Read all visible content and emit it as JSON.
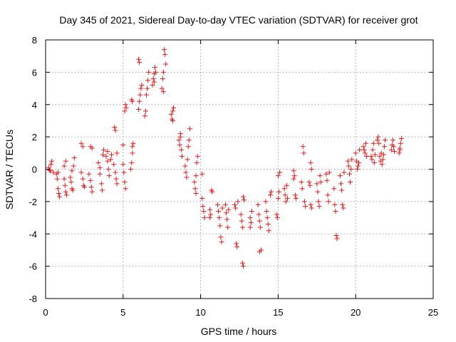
{
  "chart_data": {
    "type": "scatter",
    "title": "Day 345 of 2021, Sidereal Day-to-day VTEC variation (SDTVAR) for receiver grot",
    "xlabel": "GPS time / hours",
    "ylabel": "SDTVAR / TECUs",
    "xlim": [
      0,
      25
    ],
    "ylim": [
      -8,
      8
    ],
    "xticks": [
      0,
      5,
      10,
      15,
      20,
      25
    ],
    "yticks": [
      -8,
      -6,
      -4,
      -2,
      0,
      2,
      4,
      6,
      8
    ],
    "grid": true,
    "marker": "+",
    "color": "#e41a1c",
    "series": [
      {
        "name": "SDTVAR",
        "points": [
          [
            0.2,
            0.1
          ],
          [
            0.3,
            -0.1
          ],
          [
            0.35,
            0.3
          ],
          [
            0.4,
            0.5
          ],
          [
            0.5,
            -0.2
          ],
          [
            0.25,
            -0.05
          ],
          [
            0.7,
            -0.3
          ],
          [
            0.75,
            -0.6
          ],
          [
            0.8,
            -1.2
          ],
          [
            0.85,
            -1.5
          ],
          [
            0.9,
            -1.7
          ],
          [
            0.8,
            -0.2
          ],
          [
            1.2,
            -0.6
          ],
          [
            1.25,
            -1.0
          ],
          [
            1.3,
            -1.4
          ],
          [
            1.35,
            -1.6
          ],
          [
            1.2,
            0.2
          ],
          [
            1.3,
            0.5
          ],
          [
            1.6,
            -0.5
          ],
          [
            1.65,
            -0.8
          ],
          [
            1.7,
            -1.2
          ],
          [
            1.75,
            -1.3
          ],
          [
            1.7,
            -0.1
          ],
          [
            1.8,
            0.2
          ],
          [
            1.85,
            0.7
          ],
          [
            2.3,
            1.6
          ],
          [
            2.4,
            1.4
          ],
          [
            2.3,
            -0.2
          ],
          [
            2.4,
            -0.6
          ],
          [
            2.45,
            -1.0
          ],
          [
            2.5,
            -1.1
          ],
          [
            2.8,
            -0.3
          ],
          [
            2.9,
            -0.7
          ],
          [
            2.95,
            -1.1
          ],
          [
            3.0,
            -1.4
          ],
          [
            2.9,
            1.4
          ],
          [
            3.0,
            1.3
          ],
          [
            3.4,
            0.4
          ],
          [
            3.5,
            0.1
          ],
          [
            3.5,
            -0.3
          ],
          [
            3.6,
            -0.9
          ],
          [
            3.65,
            -1.3
          ],
          [
            3.7,
            0.9
          ],
          [
            3.75,
            1.2
          ],
          [
            3.9,
            0.8
          ],
          [
            4.0,
            0.5
          ],
          [
            4.05,
            0.0
          ],
          [
            4.1,
            -0.4
          ],
          [
            4.0,
            1.1
          ],
          [
            4.2,
            0.6
          ],
          [
            4.25,
            0.9
          ],
          [
            4.4,
            0.3
          ],
          [
            4.5,
            -0.2
          ],
          [
            4.55,
            -0.6
          ],
          [
            4.6,
            -0.9
          ],
          [
            4.45,
            2.6
          ],
          [
            4.5,
            2.4
          ],
          [
            4.6,
            1.0
          ],
          [
            5.0,
            0.3
          ],
          [
            5.05,
            -0.2
          ],
          [
            5.1,
            -0.8
          ],
          [
            5.15,
            -1.2
          ],
          [
            5.0,
            1.5
          ],
          [
            5.1,
            3.6
          ],
          [
            5.15,
            4.0
          ],
          [
            5.2,
            3.8
          ],
          [
            5.5,
            0.0
          ],
          [
            5.55,
            0.4
          ],
          [
            5.6,
            1.0
          ],
          [
            5.6,
            1.4
          ],
          [
            5.65,
            1.6
          ],
          [
            5.55,
            4.3
          ],
          [
            5.6,
            4.2
          ],
          [
            6.0,
            3.7
          ],
          [
            6.05,
            4.2
          ],
          [
            6.1,
            4.6
          ],
          [
            6.15,
            5.0
          ],
          [
            6.2,
            5.2
          ],
          [
            6.0,
            6.8
          ],
          [
            6.05,
            6.6
          ],
          [
            6.4,
            3.3
          ],
          [
            6.45,
            3.6
          ],
          [
            6.5,
            4.6
          ],
          [
            6.55,
            5.0
          ],
          [
            6.6,
            5.5
          ],
          [
            6.65,
            6.0
          ],
          [
            6.9,
            5.2
          ],
          [
            6.95,
            5.6
          ],
          [
            7.0,
            5.9
          ],
          [
            7.05,
            6.3
          ],
          [
            7.1,
            6.0
          ],
          [
            7.0,
            5.4
          ],
          [
            7.5,
            5.0
          ],
          [
            7.55,
            5.6
          ],
          [
            7.6,
            6.0
          ],
          [
            7.65,
            7.4
          ],
          [
            7.7,
            7.1
          ],
          [
            7.75,
            6.5
          ],
          [
            7.6,
            4.8
          ],
          [
            8.1,
            3.4
          ],
          [
            8.15,
            3.1
          ],
          [
            8.2,
            3.6
          ],
          [
            8.25,
            3.8
          ],
          [
            8.2,
            3.0
          ],
          [
            8.6,
            1.8
          ],
          [
            8.65,
            1.5
          ],
          [
            8.7,
            2.0
          ],
          [
            8.75,
            1.2
          ],
          [
            8.8,
            0.8
          ],
          [
            8.7,
            2.2
          ],
          [
            9.0,
            0.2
          ],
          [
            9.05,
            -0.2
          ],
          [
            9.1,
            -0.5
          ],
          [
            9.15,
            0.6
          ],
          [
            9.2,
            1.4
          ],
          [
            9.25,
            1.8
          ],
          [
            9.3,
            2.5
          ],
          [
            9.6,
            -0.8
          ],
          [
            9.65,
            -1.2
          ],
          [
            9.7,
            -1.5
          ],
          [
            9.75,
            0.4
          ],
          [
            9.8,
            0.8
          ],
          [
            9.7,
            -0.4
          ],
          [
            10.1,
            -1.8
          ],
          [
            10.15,
            -2.3
          ],
          [
            10.2,
            -2.6
          ],
          [
            10.25,
            -3.0
          ],
          [
            10.1,
            -0.3
          ],
          [
            10.6,
            -2.5
          ],
          [
            10.65,
            -2.8
          ],
          [
            10.7,
            -1.3
          ],
          [
            10.75,
            -1.4
          ],
          [
            10.6,
            -3.0
          ],
          [
            11.1,
            -2.2
          ],
          [
            11.15,
            -2.6
          ],
          [
            11.2,
            -3.0
          ],
          [
            11.25,
            -3.5
          ],
          [
            11.3,
            -4.2
          ],
          [
            11.35,
            -4.5
          ],
          [
            11.4,
            -2.4
          ],
          [
            11.6,
            -2.2
          ],
          [
            11.65,
            -2.7
          ],
          [
            11.7,
            -3.1
          ],
          [
            11.75,
            -3.6
          ],
          [
            11.8,
            -2.5
          ],
          [
            12.2,
            -2.2
          ],
          [
            12.25,
            -2.4
          ],
          [
            12.3,
            -4.6
          ],
          [
            12.35,
            -4.8
          ],
          [
            12.4,
            -2.0
          ],
          [
            12.6,
            -2.8
          ],
          [
            12.65,
            -3.2
          ],
          [
            12.7,
            -3.6
          ],
          [
            12.75,
            -1.7
          ],
          [
            12.8,
            -1.9
          ],
          [
            12.7,
            -5.8
          ],
          [
            12.75,
            -6.0
          ],
          [
            13.2,
            -3.0
          ],
          [
            13.25,
            -3.3
          ],
          [
            13.3,
            -2.6
          ],
          [
            13.2,
            -3.6
          ],
          [
            13.7,
            -2.2
          ],
          [
            13.75,
            -2.8
          ],
          [
            13.8,
            -3.2
          ],
          [
            13.85,
            -3.6
          ],
          [
            13.8,
            -5.1
          ],
          [
            13.9,
            -5.0
          ],
          [
            14.2,
            -2.0
          ],
          [
            14.25,
            -2.6
          ],
          [
            14.3,
            -3.0
          ],
          [
            14.35,
            -3.4
          ],
          [
            14.4,
            -3.8
          ],
          [
            14.5,
            -1.6
          ],
          [
            14.55,
            -1.4
          ],
          [
            14.9,
            -2.8
          ],
          [
            14.95,
            -3.0
          ],
          [
            15.0,
            -1.8
          ],
          [
            15.05,
            -1.4
          ],
          [
            15.0,
            -0.4
          ],
          [
            15.1,
            -0.2
          ],
          [
            15.4,
            -1.2
          ],
          [
            15.45,
            -1.6
          ],
          [
            15.5,
            -2.0
          ],
          [
            15.55,
            -1.0
          ],
          [
            15.6,
            -1.8
          ],
          [
            16.0,
            -0.1
          ],
          [
            16.05,
            -0.4
          ],
          [
            16.1,
            -1.6
          ],
          [
            16.15,
            -1.8
          ],
          [
            16.0,
            -0.6
          ],
          [
            16.5,
            -0.8
          ],
          [
            16.55,
            -1.2
          ],
          [
            16.6,
            1.4
          ],
          [
            16.65,
            1.0
          ],
          [
            16.7,
            -2.0
          ],
          [
            16.75,
            -2.3
          ],
          [
            17.0,
            -0.8
          ],
          [
            17.05,
            -1.0
          ],
          [
            17.1,
            -2.2
          ],
          [
            17.15,
            -2.4
          ],
          [
            17.1,
            0.4
          ],
          [
            17.15,
            0.0
          ],
          [
            17.5,
            -0.9
          ],
          [
            17.55,
            -1.4
          ],
          [
            17.6,
            -2.0
          ],
          [
            17.65,
            -2.3
          ],
          [
            17.7,
            -0.4
          ],
          [
            17.75,
            -0.8
          ],
          [
            18.1,
            -0.3
          ],
          [
            18.15,
            -0.7
          ],
          [
            18.2,
            -1.6
          ],
          [
            18.25,
            -2.0
          ],
          [
            18.3,
            -0.2
          ],
          [
            18.6,
            -1.2
          ],
          [
            18.65,
            -2.2
          ],
          [
            18.7,
            -2.6
          ],
          [
            18.75,
            -4.1
          ],
          [
            18.8,
            -4.3
          ],
          [
            19.0,
            -0.4
          ],
          [
            19.05,
            -0.9
          ],
          [
            19.1,
            -1.3
          ],
          [
            19.15,
            -2.2
          ],
          [
            19.2,
            -2.4
          ],
          [
            19.25,
            -0.2
          ],
          [
            19.5,
            0.5
          ],
          [
            19.55,
            0.2
          ],
          [
            19.6,
            -0.3
          ],
          [
            19.65,
            -0.8
          ],
          [
            19.7,
            0.0
          ],
          [
            19.75,
            0.6
          ],
          [
            20.0,
            1.0
          ],
          [
            20.05,
            0.5
          ],
          [
            20.1,
            0.0
          ],
          [
            20.15,
            0.2
          ],
          [
            20.2,
            0.4
          ],
          [
            20.25,
            1.2
          ],
          [
            20.5,
            1.4
          ],
          [
            20.55,
            1.2
          ],
          [
            20.6,
            1.0
          ],
          [
            20.65,
            1.6
          ],
          [
            20.7,
            0.8
          ],
          [
            21.0,
            0.8
          ],
          [
            21.05,
            0.6
          ],
          [
            21.1,
            1.2
          ],
          [
            21.15,
            1.6
          ],
          [
            21.2,
            0.4
          ],
          [
            21.25,
            0.9
          ],
          [
            21.4,
            1.8
          ],
          [
            21.45,
            2.0
          ],
          [
            21.5,
            1.6
          ],
          [
            21.55,
            0.8
          ],
          [
            21.6,
            0.5
          ],
          [
            21.65,
            1.0
          ],
          [
            21.7,
            0.3
          ],
          [
            21.75,
            0.6
          ],
          [
            21.8,
            0.9
          ],
          [
            21.85,
            1.4
          ],
          [
            21.9,
            1.8
          ],
          [
            22.3,
            1.2
          ],
          [
            22.35,
            1.5
          ],
          [
            22.4,
            1.8
          ],
          [
            22.45,
            1.4
          ],
          [
            22.5,
            1.1
          ],
          [
            22.8,
            1.0
          ],
          [
            22.85,
            1.3
          ],
          [
            22.9,
            1.6
          ],
          [
            22.95,
            1.9
          ],
          [
            22.85,
            1.2
          ]
        ]
      }
    ]
  }
}
